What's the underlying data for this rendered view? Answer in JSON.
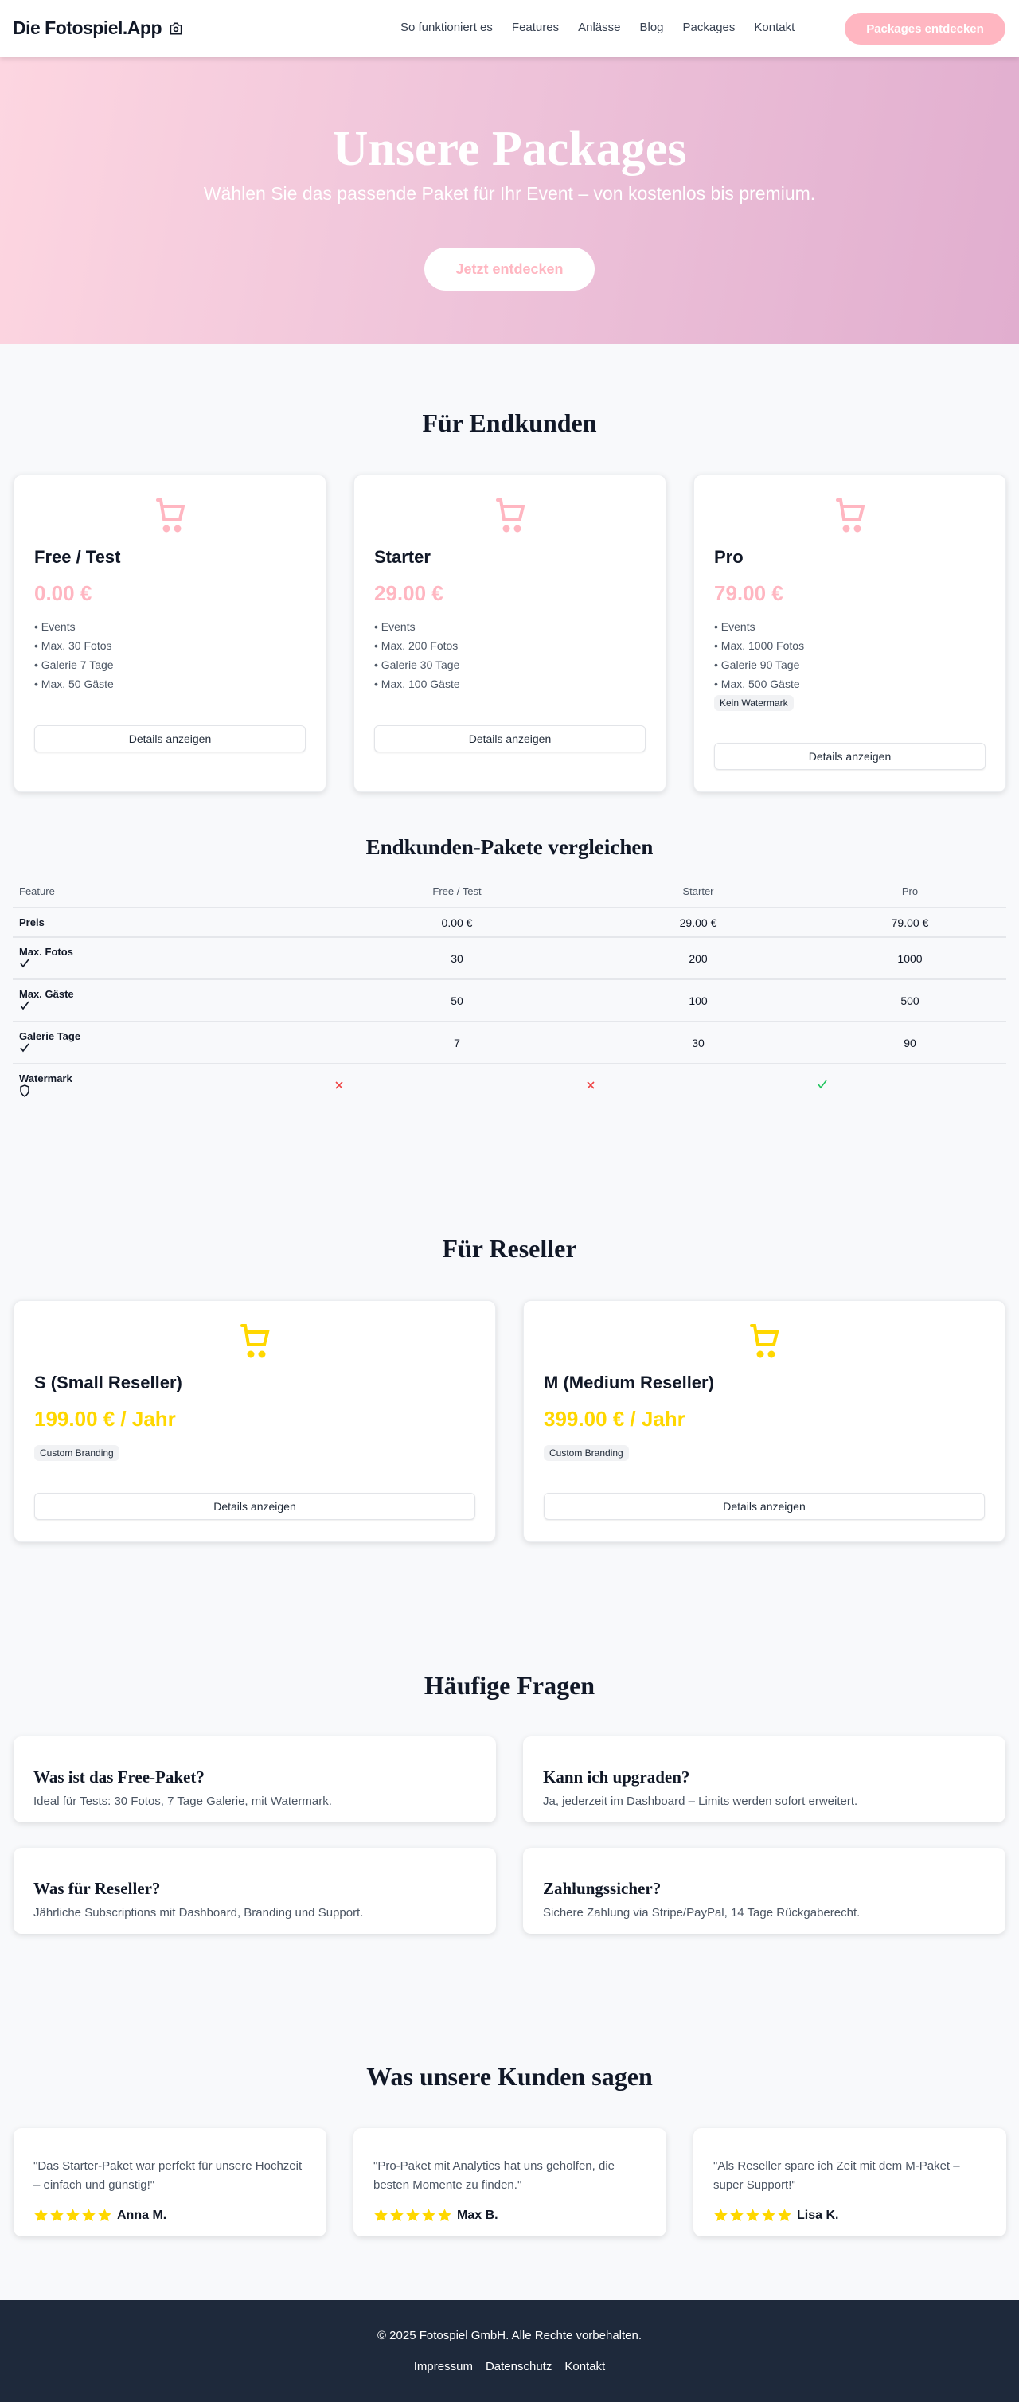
{
  "colors": {
    "accent_pink": "#ffb6c1",
    "accent_yellow": "#ffd700",
    "footer_bg": "#1e293b",
    "success": "#22c55e",
    "danger": "#ef4444"
  },
  "nav": {
    "brand": "Die Fotospiel.App",
    "brand_icon": "camera-icon",
    "links": [
      "So funktioniert es",
      "Features",
      "Anlässe",
      "Blog",
      "Packages",
      "Kontakt"
    ],
    "cta": "Packages entdecken"
  },
  "hero": {
    "title": "Unsere Packages",
    "subtitle": "Wählen Sie das passende Paket für Ihr Event – von kostenlos bis premium.",
    "button": "Jetzt entdecken"
  },
  "endkunden": {
    "title": "Für Endkunden",
    "details_label": "Details anzeigen",
    "packages": [
      {
        "name": "Free / Test",
        "price": "0.00 €",
        "features": [
          "• Events",
          "• Max. 30 Fotos",
          "• Galerie 7 Tage",
          "• Max. 50 Gäste"
        ]
      },
      {
        "name": "Starter",
        "price": "29.00 €",
        "features": [
          "• Events",
          "• Max. 200 Fotos",
          "• Galerie 30 Tage",
          "• Max. 100 Gäste"
        ]
      },
      {
        "name": "Pro",
        "price": "79.00 €",
        "features": [
          "• Events",
          "• Max. 1000 Fotos",
          "• Galerie 90 Tage",
          "• Max. 500 Gäste"
        ],
        "badge": "Kein Watermark"
      }
    ]
  },
  "compare": {
    "title": "Endkunden-Pakete vergleichen",
    "headers": [
      "Feature",
      "Free / Test",
      "Starter",
      "Pro"
    ],
    "rows": [
      {
        "label": "Preis",
        "values": [
          "0.00 €",
          "29.00 €",
          "79.00 €"
        ]
      },
      {
        "label": "Max. Fotos",
        "icon": "check-icon",
        "values": [
          "30",
          "200",
          "1000"
        ]
      },
      {
        "label": "Max. Gäste",
        "icon": "check-icon",
        "values": [
          "50",
          "100",
          "500"
        ]
      },
      {
        "label": "Galerie Tage",
        "icon": "check-icon",
        "values": [
          "7",
          "30",
          "90"
        ]
      },
      {
        "label": "Watermark",
        "icon": "shield-icon",
        "values": [
          false,
          false,
          true
        ]
      }
    ]
  },
  "reseller": {
    "title": "Für Reseller",
    "details_label": "Details anzeigen",
    "packages": [
      {
        "name": "S (Small Reseller)",
        "price": "199.00 € / Jahr",
        "badge": "Custom Branding"
      },
      {
        "name": "M (Medium Reseller)",
        "price": "399.00 € / Jahr",
        "badge": "Custom Branding"
      }
    ]
  },
  "faq": {
    "title": "Häufige Fragen",
    "items": [
      {
        "q": "Was ist das Free-Paket?",
        "a": "Ideal für Tests: 30 Fotos, 7 Tage Galerie, mit Watermark."
      },
      {
        "q": "Kann ich upgraden?",
        "a": "Ja, jederzeit im Dashboard – Limits werden sofort erweitert."
      },
      {
        "q": "Was für Reseller?",
        "a": "Jährliche Subscriptions mit Dashboard, Branding und Support."
      },
      {
        "q": "Zahlungssicher?",
        "a": "Sichere Zahlung via Stripe/PayPal, 14 Tage Rückgaberecht."
      }
    ]
  },
  "testimonials": {
    "title": "Was unsere Kunden sagen",
    "items": [
      {
        "quote": "\"Das Starter-Paket war perfekt für unsere Hochzeit – einfach und günstig!\"",
        "name": "Anna M.",
        "rating": 5
      },
      {
        "quote": "\"Pro-Paket mit Analytics hat uns geholfen, die besten Momente zu finden.\"",
        "name": "Max B.",
        "rating": 5
      },
      {
        "quote": "\"Als Reseller spare ich Zeit mit dem M-Paket – super Support!\"",
        "name": "Lisa K.",
        "rating": 5
      }
    ]
  },
  "footer": {
    "copyright": "© 2025 Fotospiel GmbH. Alle Rechte vorbehalten.",
    "links": [
      "Impressum",
      "Datenschutz",
      "Kontakt"
    ]
  }
}
